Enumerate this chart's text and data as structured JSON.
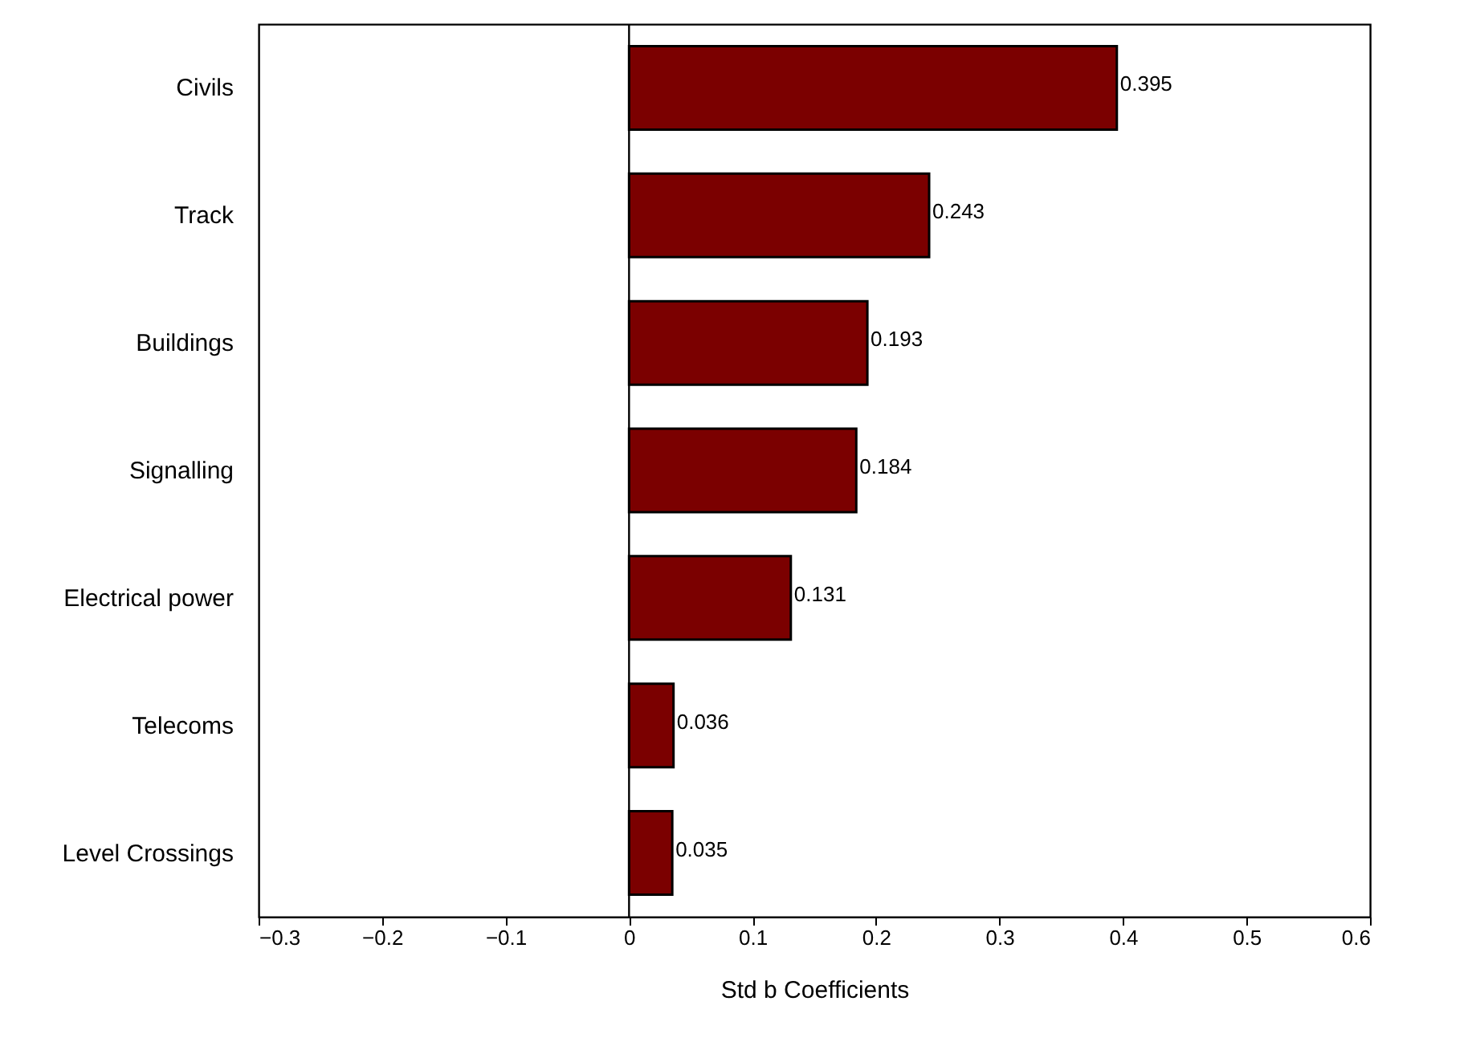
{
  "chart_data": {
    "type": "bar",
    "orientation": "horizontal",
    "xlabel": "Std b Coefficients",
    "categories": [
      "Civils",
      "Track",
      "Buildings",
      "Signalling",
      "Electrical power",
      "Telecoms",
      "Level Crossings"
    ],
    "values": [
      0.395,
      0.243,
      0.193,
      0.184,
      0.131,
      0.036,
      0.035
    ],
    "color": "#7b0000",
    "xlim": [
      -0.3,
      0.6
    ],
    "xticks": [
      -0.3,
      -0.2,
      -0.1,
      0,
      0.1,
      0.2,
      0.3,
      0.4,
      0.5,
      0.6
    ],
    "ref_lines": [
      {
        "axis": "x",
        "value": 0
      }
    ],
    "data_labels": true,
    "grid": false
  }
}
